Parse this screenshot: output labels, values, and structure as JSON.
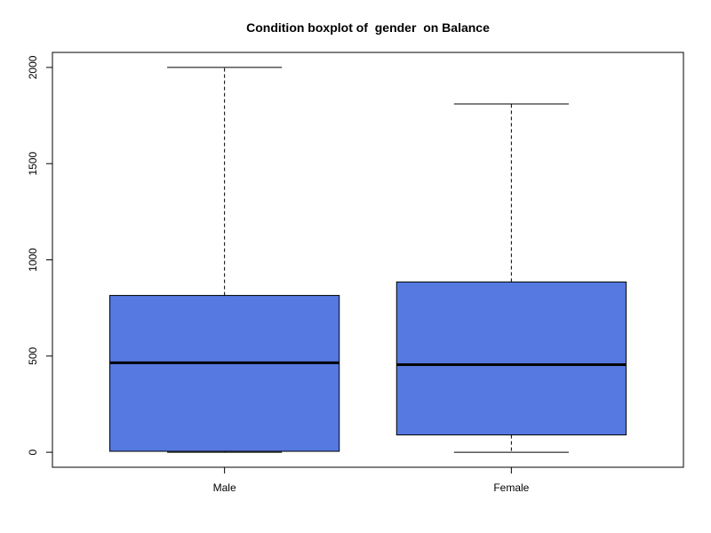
{
  "chart_data": {
    "type": "boxplot",
    "title": "Condition boxplot of  gender  on Balance",
    "xlabel": "",
    "ylabel": "",
    "categories": [
      "Male",
      "Female"
    ],
    "boxes": [
      {
        "category": "Male",
        "whisker_low": 0,
        "q1": 5,
        "median": 465,
        "q3": 815,
        "whisker_high": 2000
      },
      {
        "category": "Female",
        "whisker_low": 0,
        "q1": 90,
        "median": 455,
        "q3": 885,
        "whisker_high": 1810
      }
    ],
    "yticks": [
      0,
      500,
      1000,
      1500,
      2000
    ],
    "ylim": [
      -78,
      2078
    ],
    "box_color": "#5579e0",
    "grid": false,
    "legend": "none"
  }
}
